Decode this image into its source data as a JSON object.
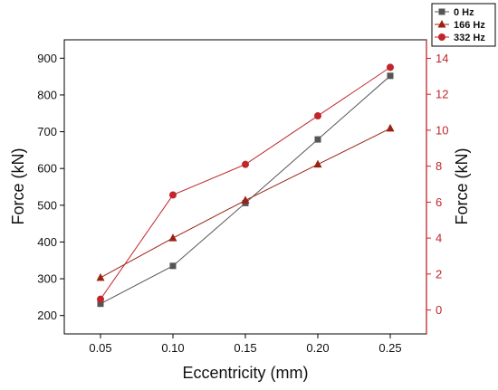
{
  "chart_data": {
    "type": "line",
    "title": "",
    "xlabel": "Eccentricity (mm)",
    "ylabel_left": "Force (kN)",
    "ylabel_right": "Force (kN)",
    "x": [
      0.05,
      0.1,
      0.15,
      0.2,
      0.25
    ],
    "x_tick_labels": [
      "0.05",
      "0.10",
      "0.15",
      "0.20",
      "0.25"
    ],
    "xlim": [
      0.025,
      0.275
    ],
    "ylim_left": [
      150,
      950
    ],
    "ylim_right": [
      -1.33,
      15.03
    ],
    "y_left_ticks": [
      "200",
      "300",
      "400",
      "500",
      "600",
      "700",
      "800",
      "900"
    ],
    "y_right_ticks": [
      "0",
      "2",
      "4",
      "6",
      "8",
      "10",
      "12",
      "14"
    ],
    "legend_position": "top-right",
    "grid": false,
    "series": [
      {
        "name": "0 Hz",
        "axis": "left",
        "marker": "square",
        "color": "#555555",
        "values": [
          232,
          335,
          506,
          679,
          852
        ]
      },
      {
        "name": "166 Hz",
        "axis": "right",
        "marker": "triangle",
        "color": "#9b2213",
        "values": [
          1.8,
          4.0,
          6.1,
          8.1,
          10.1
        ]
      },
      {
        "name": "332 Hz",
        "axis": "right",
        "marker": "circle",
        "color": "#c0262b",
        "values": [
          0.6,
          6.4,
          8.1,
          10.8,
          13.5
        ]
      }
    ]
  }
}
